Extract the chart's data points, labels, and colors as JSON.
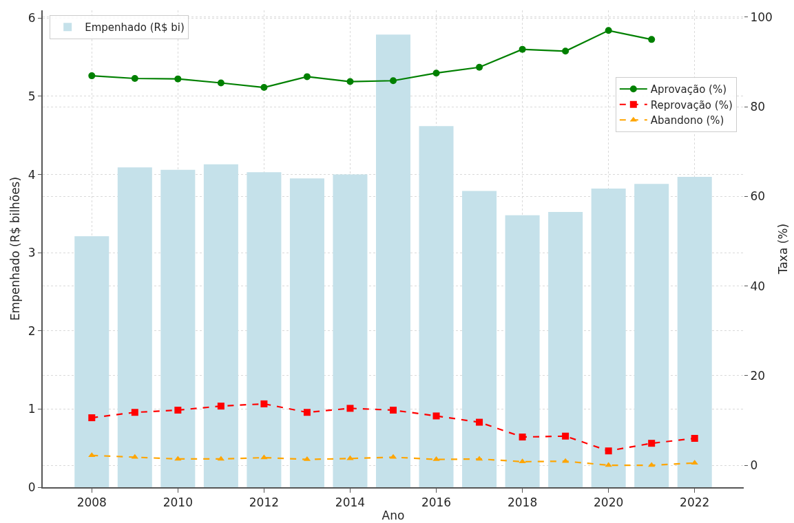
{
  "chart_data": {
    "type": "bar",
    "x": [
      2008,
      2009,
      2010,
      2011,
      2012,
      2013,
      2014,
      2015,
      2016,
      2017,
      2018,
      2019,
      2020,
      2021,
      2022
    ],
    "xlabel": "Ano",
    "ylabel": "Empenhado (R$ bilhões)",
    "y2label": "Taxa (%)",
    "xlim": [
      2006.86,
      2023.14
    ],
    "xticks": [
      2008,
      2010,
      2012,
      2014,
      2016,
      2018,
      2020,
      2022
    ],
    "ylim": [
      0,
      6.1
    ],
    "yticks": [
      0,
      1,
      2,
      3,
      4,
      5,
      6
    ],
    "y2lim": [
      -4.9,
      101.5
    ],
    "y2ticks": [
      0,
      20,
      40,
      60,
      80,
      100
    ],
    "grid": true,
    "legend": "top",
    "series": [
      {
        "name": "Empenhado (R$ bi)",
        "color": "#c5e1ea",
        "values": [
          3.21,
          4.09,
          4.06,
          4.13,
          4.03,
          3.95,
          4.0,
          5.79,
          4.62,
          3.79,
          3.48,
          3.52,
          3.82,
          3.88,
          3.97
        ]
      },
      {
        "name": "Aprovação (%)",
        "type": "line",
        "axis": "y2",
        "color": "#008000",
        "marker": "circle",
        "line_style": "solid",
        "values": [
          86.9,
          86.3,
          86.2,
          85.3,
          84.3,
          86.7,
          85.6,
          85.8,
          87.5,
          88.8,
          92.8,
          92.4,
          97.0,
          95.0,
          null
        ]
      },
      {
        "name": "Reprovação (%)",
        "type": "line",
        "axis": "y2",
        "color": "#ff0000",
        "marker": "square",
        "line_style": "dashed",
        "values": [
          10.6,
          11.8,
          12.3,
          13.2,
          13.7,
          11.8,
          12.7,
          12.3,
          11.0,
          9.6,
          6.3,
          6.5,
          3.2,
          4.9,
          6.0
        ]
      },
      {
        "name": "Abandono (%)",
        "type": "line",
        "axis": "y2",
        "color": "#ffa500",
        "marker": "triangle",
        "line_style": "dashed",
        "values": [
          2.2,
          1.8,
          1.4,
          1.4,
          1.7,
          1.3,
          1.5,
          1.8,
          1.3,
          1.4,
          0.8,
          0.9,
          0.0,
          0.0,
          0.5
        ]
      }
    ]
  }
}
